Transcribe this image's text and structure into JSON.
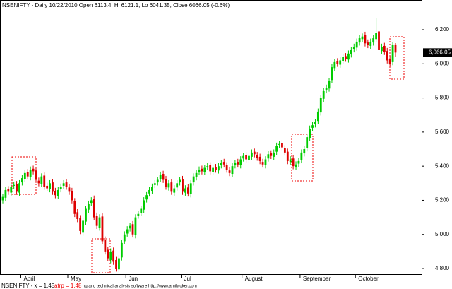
{
  "chart_data": {
    "type": "candlestick",
    "title": "NSENIFTY - Daily 10/22/2010 Open 6113.4, Hi 6121.1, Lo 6041.35, Close 6066.05 (-0.6%)",
    "footer": [
      "NSENIFTY - x = 1.45",
      "atrp = 1.48",
      "ng and technical analysis software  http://www.amibroker.com"
    ],
    "up_color": "#00cc00",
    "down_color": "#dd0000",
    "ylim": [
      4767,
      6374
    ],
    "yticks": [
      {
        "value": 4800,
        "label": "4,800"
      },
      {
        "value": 5000,
        "label": "5,000"
      },
      {
        "value": 5200,
        "label": "5,200"
      },
      {
        "value": 5400,
        "label": "5,400"
      },
      {
        "value": 5600,
        "label": "5,600"
      },
      {
        "value": 5800,
        "label": "5,800"
      },
      {
        "value": 6000,
        "label": "6,000"
      },
      {
        "value": 6200,
        "label": "6,200"
      }
    ],
    "last_price": {
      "value": 6066.05,
      "label": "6,066.05"
    },
    "categories": [
      null,
      null,
      null,
      null,
      null,
      null,
      null,
      "April",
      null,
      null,
      null,
      null,
      null,
      null,
      null,
      null,
      null,
      null,
      null,
      null,
      null,
      null,
      null,
      null,
      "May",
      null,
      null,
      null,
      null,
      null,
      null,
      null,
      null,
      null,
      null,
      null,
      null,
      null,
      null,
      null,
      null,
      null,
      null,
      null,
      null,
      "Jun",
      null,
      null,
      null,
      null,
      null,
      null,
      null,
      null,
      null,
      null,
      null,
      null,
      null,
      null,
      null,
      null,
      null,
      null,
      null,
      "Jul",
      null,
      null,
      null,
      null,
      null,
      null,
      null,
      null,
      null,
      null,
      null,
      null,
      null,
      null,
      null,
      null,
      null,
      null,
      null,
      null,
      null,
      "August",
      null,
      null,
      null,
      null,
      null,
      null,
      null,
      null,
      null,
      null,
      null,
      null,
      null,
      null,
      null,
      null,
      null,
      null,
      null,
      null,
      "September",
      null,
      null,
      null,
      null,
      null,
      null,
      null,
      null,
      null,
      null,
      null,
      null,
      null,
      null,
      null,
      null,
      null,
      null,
      null,
      "October",
      null,
      null,
      null,
      null,
      null,
      null,
      null,
      null,
      null,
      null,
      null,
      null,
      null,
      null
    ],
    "open": [
      5200,
      5215,
      5265,
      5245,
      5285,
      5295,
      5245,
      5305,
      5325,
      5365,
      5335,
      5385,
      5375,
      5315,
      5295,
      5345,
      5285,
      5265,
      5305,
      5255,
      5225,
      5265,
      5285,
      5305,
      5275,
      5255,
      5195,
      5130,
      5095,
      5010,
      5075,
      5145,
      5185,
      5210,
      5110,
      5040,
      5105,
      4970,
      4910,
      4850,
      4905,
      4850,
      4795,
      4865,
      4960,
      5005,
      5035,
      5060,
      4995,
      5110,
      5125,
      5145,
      5205,
      5240,
      5255,
      5290,
      5305,
      5325,
      5355,
      5325,
      5275,
      5305,
      5245,
      5275,
      5305,
      5325,
      5245,
      5275,
      5235,
      5305,
      5335,
      5365,
      5385,
      5365,
      5395,
      5405,
      5365,
      5395,
      5375,
      5405,
      5425,
      5405,
      5375,
      5355,
      5405,
      5425,
      5405,
      5445,
      5465,
      5435,
      5455,
      5485,
      5465,
      5455,
      5425,
      5405,
      5445,
      5475,
      5455,
      5485,
      5525,
      5535,
      5505,
      5485,
      5425,
      5445,
      5395,
      5415,
      5435,
      5475,
      5505,
      5565,
      5625,
      5645,
      5665,
      5715,
      5795,
      5845,
      5855,
      5905,
      5975,
      6015,
      5995,
      6015,
      6045,
      6025,
      6055,
      6085,
      6095,
      6125,
      6145,
      6170,
      6125,
      6105,
      6125,
      6145,
      6190,
      6075,
      6105,
      6075,
      6030,
      6010,
      6113.4
    ],
    "high": [
      5238,
      5278,
      5283,
      5298,
      5308,
      5313,
      5318,
      5348,
      5378,
      5383,
      5398,
      5403,
      5393,
      5333,
      5358,
      5363,
      5303,
      5318,
      5323,
      5273,
      5278,
      5298,
      5318,
      5323,
      5293,
      5273,
      5213,
      5148,
      5113,
      5098,
      5168,
      5198,
      5218,
      5228,
      5128,
      5118,
      5123,
      4988,
      4928,
      4918,
      4923,
      4868,
      4878,
      4968,
      5018,
      5048,
      5068,
      5078,
      5118,
      5138,
      5168,
      5218,
      5248,
      5278,
      5298,
      5318,
      5338,
      5368,
      5373,
      5343,
      5318,
      5323,
      5288,
      5318,
      5338,
      5343,
      5288,
      5293,
      5318,
      5358,
      5378,
      5398,
      5403,
      5408,
      5418,
      5423,
      5408,
      5413,
      5418,
      5438,
      5443,
      5423,
      5393,
      5418,
      5438,
      5443,
      5458,
      5478,
      5483,
      5478,
      5498,
      5503,
      5483,
      5473,
      5443,
      5458,
      5488,
      5493,
      5498,
      5538,
      5548,
      5553,
      5523,
      5503,
      5458,
      5463,
      5428,
      5448,
      5498,
      5518,
      5588,
      5638,
      5658,
      5678,
      5738,
      5818,
      5858,
      5878,
      5918,
      5998,
      6028,
      6033,
      6038,
      6058,
      6063,
      6078,
      6098,
      6118,
      6148,
      6168,
      6178,
      6188,
      6143,
      6148,
      6168,
      6270,
      6208,
      6118,
      6123,
      6093,
      6048,
      6128,
      6121.1
    ],
    "low": [
      5182,
      5197,
      5232,
      5227,
      5267,
      5232,
      5227,
      5287,
      5307,
      5322,
      5317,
      5352,
      5302,
      5282,
      5277,
      5262,
      5252,
      5247,
      5232,
      5212,
      5207,
      5247,
      5267,
      5262,
      5232,
      5182,
      5102,
      5072,
      5002,
      4992,
      5057,
      5127,
      5167,
      5082,
      5032,
      5022,
      4942,
      4882,
      4842,
      4832,
      4822,
      4782,
      4777,
      4847,
      4942,
      4987,
      5017,
      4982,
      4977,
      5092,
      5107,
      5127,
      5187,
      5222,
      5237,
      5272,
      5287,
      5307,
      5302,
      5262,
      5257,
      5232,
      5227,
      5257,
      5287,
      5232,
      5227,
      5222,
      5217,
      5287,
      5317,
      5347,
      5352,
      5347,
      5377,
      5352,
      5347,
      5362,
      5357,
      5387,
      5392,
      5362,
      5342,
      5337,
      5387,
      5392,
      5387,
      5427,
      5422,
      5417,
      5437,
      5452,
      5432,
      5412,
      5392,
      5387,
      5427,
      5442,
      5437,
      5467,
      5507,
      5492,
      5462,
      5412,
      5407,
      5382,
      5377,
      5397,
      5417,
      5457,
      5487,
      5547,
      5607,
      5627,
      5647,
      5697,
      5777,
      5827,
      5837,
      5887,
      5957,
      5982,
      5977,
      5997,
      6012,
      6007,
      6037,
      6067,
      6077,
      6107,
      6127,
      6102,
      6092,
      6087,
      6107,
      6127,
      6062,
      6057,
      6052,
      6002,
      5982,
      5992,
      6041.35
    ],
    "close": [
      5220,
      5260,
      5250,
      5280,
      5290,
      5250,
      5300,
      5330,
      5360,
      5340,
      5380,
      5370,
      5320,
      5300,
      5340,
      5280,
      5270,
      5300,
      5250,
      5230,
      5260,
      5280,
      5300,
      5280,
      5250,
      5200,
      5120,
      5090,
      5020,
      5080,
      5150,
      5180,
      5200,
      5100,
      5050,
      5100,
      4960,
      4900,
      4860,
      4900,
      4840,
      4800,
      4860,
      4950,
      5000,
      5030,
      5050,
      5000,
      5100,
      5120,
      5150,
      5200,
      5230,
      5260,
      5280,
      5300,
      5320,
      5350,
      5320,
      5280,
      5300,
      5250,
      5270,
      5300,
      5320,
      5250,
      5270,
      5240,
      5300,
      5340,
      5360,
      5380,
      5370,
      5390,
      5400,
      5370,
      5390,
      5380,
      5400,
      5420,
      5410,
      5380,
      5360,
      5400,
      5420,
      5410,
      5440,
      5460,
      5440,
      5460,
      5480,
      5470,
      5450,
      5430,
      5410,
      5440,
      5470,
      5460,
      5480,
      5520,
      5530,
      5510,
      5480,
      5430,
      5440,
      5400,
      5410,
      5430,
      5480,
      5500,
      5570,
      5620,
      5640,
      5660,
      5720,
      5800,
      5840,
      5860,
      5900,
      5980,
      6010,
      6000,
      6020,
      6040,
      6030,
      6060,
      6080,
      6100,
      6130,
      6150,
      6160,
      6120,
      6110,
      6130,
      6150,
      6180,
      6080,
      6100,
      6070,
      6020,
      6000,
      6110,
      6066.05
    ]
  }
}
